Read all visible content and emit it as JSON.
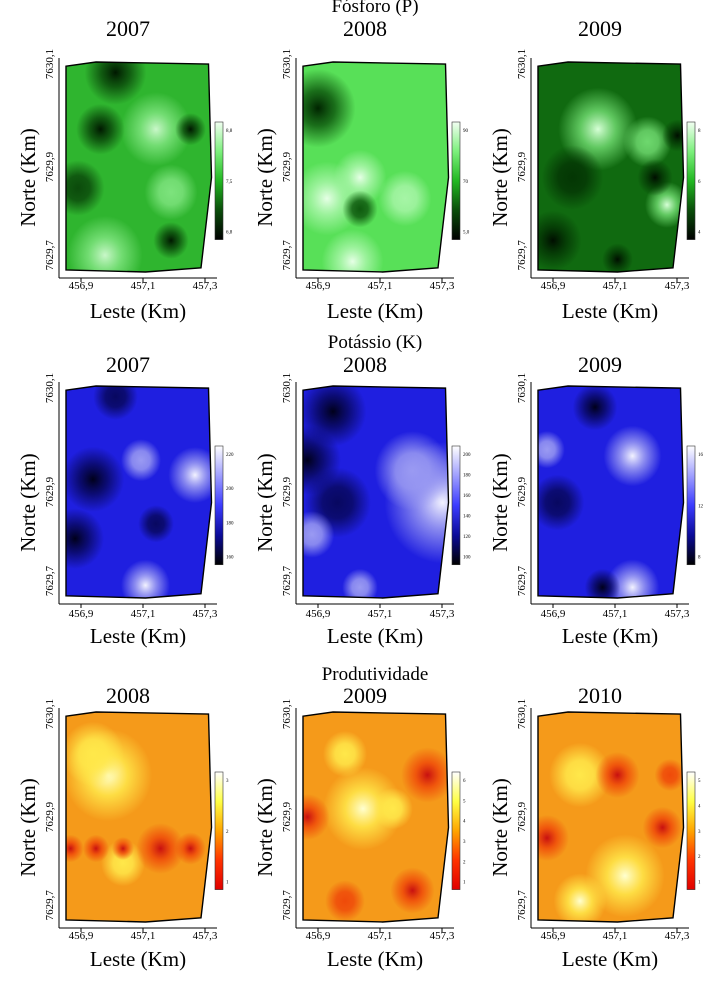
{
  "groups": [
    {
      "title": "Fósforo (P)",
      "palette": "green",
      "years": [
        "2007",
        "2008",
        "2009"
      ],
      "legend_ticks": [
        [
          "8,8",
          "7,5",
          "6,8"
        ],
        [
          "90",
          "70",
          "5,0"
        ],
        [
          "8",
          "6",
          "4"
        ]
      ]
    },
    {
      "title": "Potássio (K)",
      "palette": "blue",
      "years": [
        "2007",
        "2008",
        "2009"
      ],
      "legend_ticks": [
        [
          "220",
          "200",
          "180",
          "160"
        ],
        [
          "200",
          "180",
          "160",
          "140",
          "120",
          "100"
        ],
        [
          "16",
          "12",
          "8"
        ]
      ]
    },
    {
      "title": "Produtividade",
      "palette": "heat",
      "years": [
        "2008",
        "2009",
        "2010"
      ],
      "legend_ticks": [
        [
          "3",
          "2",
          "1"
        ],
        [
          "6",
          "5",
          "4",
          "3",
          "2",
          "1"
        ],
        [
          "5",
          "4",
          "3",
          "2",
          "1"
        ]
      ]
    }
  ],
  "axes": {
    "xlabel": "Leste (Km)",
    "ylabel": "Norte (Km)",
    "xticks": [
      "456,9",
      "457,1",
      "457,3"
    ],
    "yticks": [
      "7630,1",
      "7629,9",
      "7629,7"
    ]
  },
  "chart_data": {
    "type": "heatmap",
    "x": [
      456.9,
      457.1,
      457.3
    ],
    "y": [
      7629.7,
      7629.9,
      7630.1
    ],
    "panels": [
      {
        "title": "Fósforo (P)",
        "subtitle": "2007",
        "legend": [
          "8,8",
          "7,5",
          "6,8"
        ]
      },
      {
        "title": "Fósforo (P)",
        "subtitle": "2008",
        "legend": [
          "90",
          "70",
          "5,0"
        ]
      },
      {
        "title": "Fósforo (P)",
        "subtitle": "2009",
        "legend": [
          "8",
          "6",
          "4"
        ]
      },
      {
        "title": "Potássio (K)",
        "subtitle": "2007",
        "legend": [
          "220",
          "200",
          "180",
          "160"
        ]
      },
      {
        "title": "Potássio (K)",
        "subtitle": "2008",
        "legend": [
          "200",
          "180",
          "160",
          "140",
          "120",
          "100"
        ]
      },
      {
        "title": "Potássio (K)",
        "subtitle": "2009",
        "legend": [
          "16",
          "12",
          "8"
        ]
      },
      {
        "title": "Produtividade",
        "subtitle": "2008",
        "legend": [
          "3",
          "2",
          "1"
        ]
      },
      {
        "title": "Produtividade",
        "subtitle": "2009",
        "legend": [
          "6",
          "5",
          "4",
          "3",
          "2",
          "1"
        ]
      },
      {
        "title": "Produtividade",
        "subtitle": "2010",
        "legend": [
          "5",
          "4",
          "3",
          "2",
          "1"
        ]
      }
    ]
  }
}
